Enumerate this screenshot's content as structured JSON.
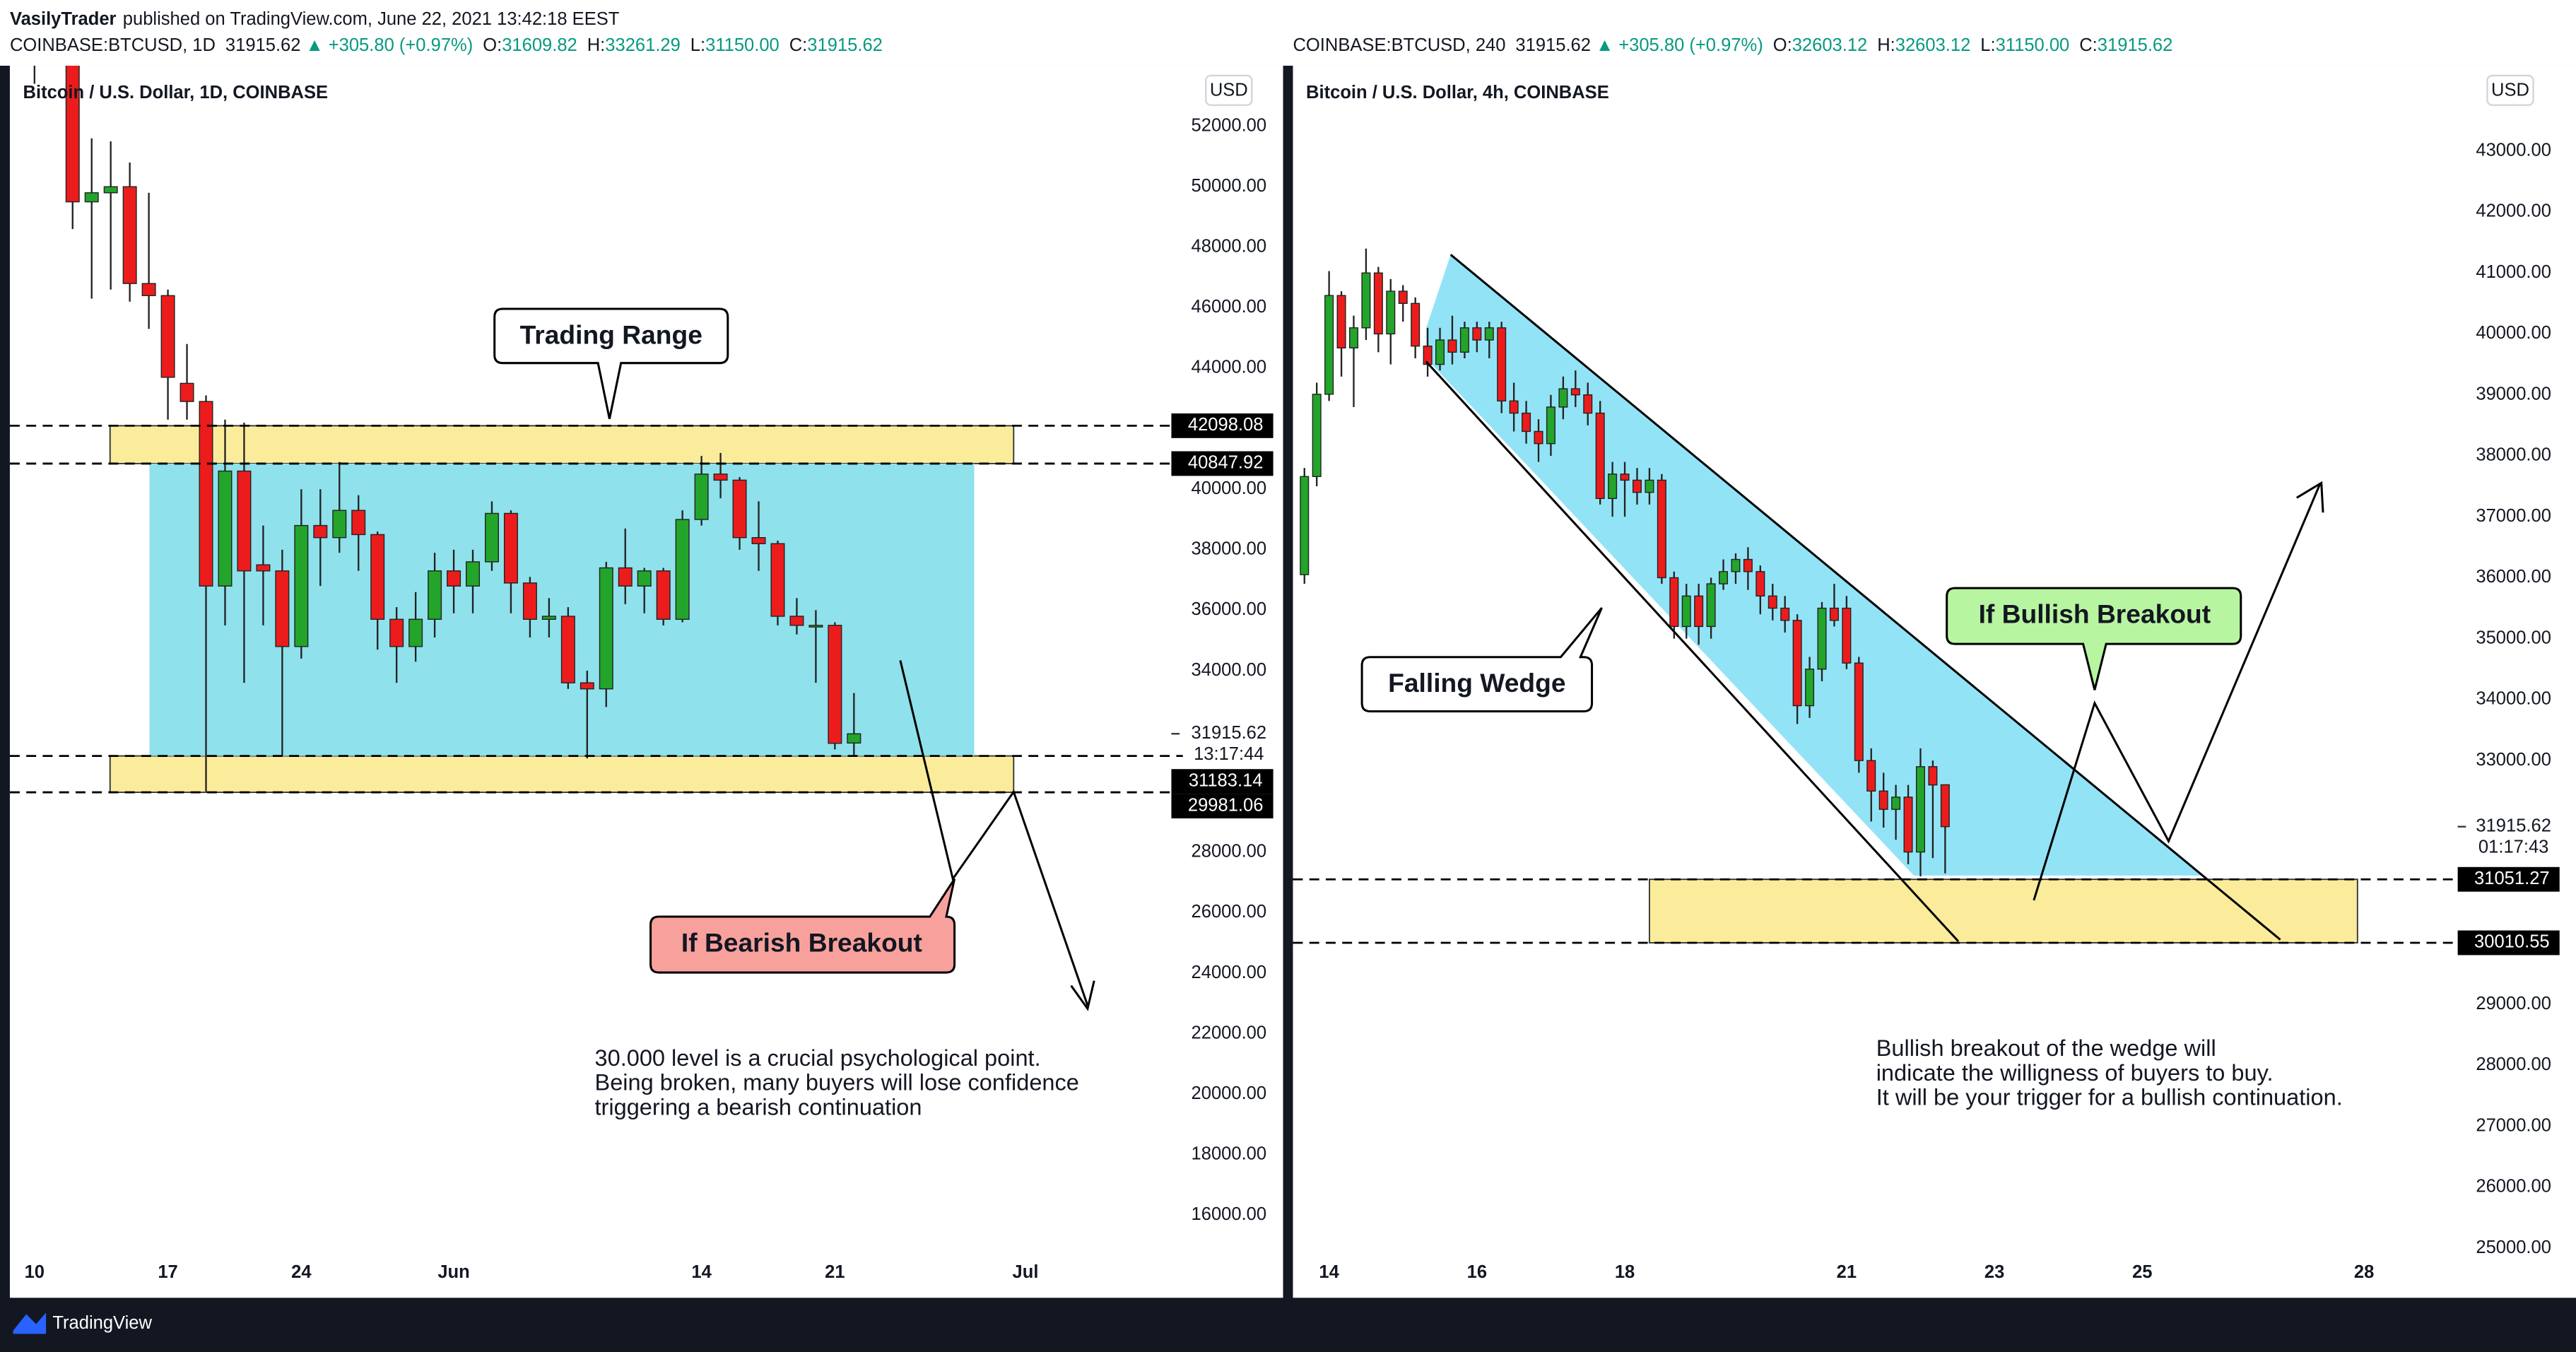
{
  "page": {
    "author": "VasilyTrader",
    "published": "published on TradingView.com, June 22, 2021 13:42:18 EEST",
    "brand": "TradingView"
  },
  "chart_data": [
    {
      "type": "candlestick",
      "title": "Bitcoin / U.S. Dollar, 1D, COINBASE",
      "currency": "USD",
      "header": {
        "symbol": "COINBASE:BTCUSD, 1D",
        "last": "31915.62",
        "arrow": "▲",
        "change": "+305.80 (+0.97%)",
        "ohlc": [
          {
            "label": "O:",
            "value": "31609.82"
          },
          {
            "label": "H:",
            "value": "33261.29"
          },
          {
            "label": "L:",
            "value": "31150.00"
          },
          {
            "label": "C:",
            "value": "31915.62"
          }
        ]
      },
      "categories": [
        "10",
        null,
        null,
        null,
        null,
        null,
        null,
        "17",
        null,
        null,
        null,
        null,
        null,
        null,
        "24",
        null,
        null,
        null,
        null,
        null,
        null,
        null,
        "Jun",
        null,
        null,
        null,
        null,
        null,
        null,
        null,
        null,
        null,
        null,
        null,
        null,
        "14",
        null,
        null,
        null,
        null,
        null,
        null,
        "21",
        null,
        null,
        null,
        null,
        null,
        null,
        null,
        null,
        null,
        "Jul"
      ],
      "series": {
        "open": [
          58000,
          55800,
          56700,
          49500,
          49800,
          50000,
          46800,
          46400,
          43500,
          42900,
          36800,
          40600,
          37500,
          37300,
          34800,
          38800,
          38400,
          39300,
          38500,
          35700,
          34800,
          35700,
          37300,
          36800,
          37600,
          39200,
          36900,
          35700,
          35800,
          33600,
          33400,
          37400,
          36800,
          37300,
          35700,
          39000,
          40500,
          40300,
          38400,
          38200,
          35800,
          35500,
          35500,
          31609.82,
          null,
          null,
          null,
          null,
          null,
          null,
          null,
          null,
          null
        ],
        "high": [
          59500,
          57000,
          57900,
          51600,
          51500,
          50800,
          49800,
          46600,
          44800,
          43100,
          42300,
          42200,
          38800,
          38000,
          40000,
          40000,
          40900,
          39800,
          38600,
          36100,
          36600,
          37900,
          38000,
          38000,
          39600,
          39300,
          37100,
          36400,
          36100,
          34000,
          37600,
          38700,
          37400,
          37400,
          39300,
          41100,
          41200,
          40400,
          39600,
          38300,
          36400,
          36000,
          35600,
          33261.29,
          null,
          null,
          null,
          null,
          null,
          null,
          null,
          null,
          null
        ],
        "low": [
          53400,
          54400,
          48600,
          46300,
          46600,
          46200,
          45300,
          42300,
          42300,
          30000,
          35500,
          33600,
          35500,
          31200,
          34400,
          36800,
          37900,
          37300,
          34700,
          33600,
          34300,
          35100,
          35900,
          35900,
          37300,
          35900,
          35100,
          35100,
          33400,
          31100,
          32800,
          36200,
          35900,
          35500,
          35600,
          38800,
          39700,
          38000,
          37300,
          35500,
          35200,
          33600,
          31400,
          31150,
          null,
          null,
          null,
          null,
          null,
          null,
          null,
          null,
          null
        ],
        "close": [
          55800,
          56700,
          49500,
          49800,
          50000,
          46800,
          46400,
          43700,
          42900,
          36800,
          40600,
          37300,
          37300,
          34800,
          38800,
          38400,
          39300,
          38500,
          35700,
          34800,
          35700,
          37300,
          36800,
          37600,
          39200,
          36900,
          35700,
          35800,
          33600,
          33400,
          37400,
          36800,
          37300,
          35700,
          39000,
          40500,
          40300,
          38400,
          38200,
          35800,
          35500,
          35500,
          31600,
          31915.62,
          null,
          null,
          null,
          null,
          null,
          null,
          null,
          null,
          null
        ]
      },
      "up_color": "#22a52a",
      "down_color": "#ec1c1c",
      "ylim": [
        14900,
        54000
      ],
      "yticks": [
        {
          "value": 52000,
          "label": "52000.00"
        },
        {
          "value": 50000,
          "label": "50000.00"
        },
        {
          "value": 48000,
          "label": "48000.00"
        },
        {
          "value": 46000,
          "label": "46000.00"
        },
        {
          "value": 44000,
          "label": "44000.00"
        },
        {
          "value": 40000,
          "label": "40000.00"
        },
        {
          "value": 38000,
          "label": "38000.00"
        },
        {
          "value": 36000,
          "label": "36000.00"
        },
        {
          "value": 34000,
          "label": "34000.00"
        },
        {
          "value": 28000,
          "label": "28000.00"
        },
        {
          "value": 26000,
          "label": "26000.00"
        },
        {
          "value": 24000,
          "label": "24000.00"
        },
        {
          "value": 22000,
          "label": "22000.00"
        },
        {
          "value": 20000,
          "label": "20000.00"
        },
        {
          "value": 18000,
          "label": "18000.00"
        },
        {
          "value": 16000,
          "label": "16000.00"
        }
      ],
      "levels": [
        42098.08,
        40847.92,
        31183.14,
        29981.06
      ],
      "last": {
        "value": 31915.62,
        "countdown": "13:17:44"
      },
      "zone_color": "#fbec9b",
      "range_color": "#8fe1ec",
      "callouts": [
        "Trading Range",
        "If Bearish Breakout"
      ],
      "note": [
        "30.000 level is a crucial psychological point.",
        "Being broken, many buyers will lose confidence",
        "triggering a bearish continuation"
      ]
    },
    {
      "type": "candlestick",
      "title": "Bitcoin / U.S. Dollar, 4h, COINBASE",
      "currency": "USD",
      "header": {
        "symbol": "COINBASE:BTCUSD, 240",
        "last": "31915.62",
        "arrow": "▲",
        "change": "+305.80 (+0.97%)",
        "ohlc": [
          {
            "label": "O:",
            "value": "32603.12"
          },
          {
            "label": "H:",
            "value": "32603.12"
          },
          {
            "label": "L:",
            "value": "31150.00"
          },
          {
            "label": "C:",
            "value": "31915.62"
          }
        ]
      },
      "categories": [
        null,
        null,
        "14",
        null,
        null,
        null,
        null,
        null,
        null,
        null,
        null,
        null,
        null,
        null,
        "16",
        null,
        null,
        null,
        null,
        null,
        null,
        null,
        null,
        null,
        null,
        null,
        "18",
        null,
        null,
        null,
        null,
        null,
        null,
        null,
        null,
        null,
        null,
        null,
        null,
        null,
        null,
        null,
        null,
        null,
        "21",
        null,
        null,
        null,
        null,
        null,
        null,
        null,
        null,
        null,
        null,
        null,
        "23",
        null,
        null,
        null,
        null,
        null,
        null,
        null,
        null,
        null,
        null,
        null,
        "25",
        null,
        null,
        null,
        null,
        null,
        null,
        null,
        null,
        null,
        null,
        null,
        null,
        null,
        null,
        null,
        null,
        null,
        "28"
      ],
      "series": {
        "open": [
          36050,
          37660,
          39010,
          40630,
          39770,
          40100,
          41000,
          40000,
          40700,
          40500,
          39800,
          39500,
          39900,
          39700,
          40100,
          39900,
          40100,
          38900,
          38700,
          38400,
          38200,
          38800,
          39100,
          39000,
          38700,
          37300,
          37700,
          37600,
          37400,
          37600,
          36000,
          35200,
          35700,
          35200,
          35900,
          36100,
          36300,
          36100,
          35700,
          35500,
          35300,
          33900,
          34500,
          35500,
          35500,
          34600,
          33000,
          32500,
          32200,
          32400,
          31500,
          32900,
          32603.12,
          null,
          null,
          null,
          null,
          null,
          null,
          null,
          null,
          null,
          null,
          null,
          null,
          null,
          null,
          null,
          null,
          null,
          null,
          null,
          null,
          null,
          null,
          null,
          null,
          null,
          null,
          null,
          null,
          null,
          null,
          null,
          null
        ],
        "high": [
          37800,
          39200,
          41030,
          40700,
          40300,
          41400,
          41100,
          40900,
          40800,
          40600,
          40100,
          40100,
          40300,
          40200,
          40200,
          40200,
          40200,
          39200,
          38900,
          38600,
          39000,
          39300,
          39400,
          39200,
          38900,
          37900,
          37900,
          37800,
          37800,
          37700,
          36100,
          35900,
          35900,
          36000,
          36300,
          36400,
          36500,
          36200,
          35900,
          35700,
          35400,
          34700,
          35600,
          35900,
          35700,
          34700,
          33200,
          32800,
          32600,
          32600,
          33200,
          33000,
          32603.12,
          null,
          null,
          null,
          null,
          null,
          null,
          null,
          null,
          null,
          null,
          null,
          null,
          null,
          null,
          null,
          null,
          null,
          null,
          null,
          null,
          null,
          null,
          null,
          null,
          null,
          null,
          null,
          null,
          null,
          null,
          null,
          null
        ],
        "low": [
          35900,
          37500,
          38900,
          39300,
          38800,
          39900,
          39700,
          39500,
          40200,
          39600,
          39300,
          39400,
          39500,
          39600,
          39700,
          39600,
          38700,
          38400,
          38200,
          37900,
          38000,
          38600,
          38800,
          38500,
          37200,
          37000,
          37000,
          37200,
          37200,
          35900,
          35000,
          35000,
          34900,
          35000,
          35800,
          35900,
          35800,
          35400,
          35300,
          35100,
          33600,
          33700,
          34300,
          35200,
          34500,
          32800,
          32000,
          31900,
          31700,
          31300,
          31100,
          31400,
          31150,
          null,
          null,
          null,
          null,
          null,
          null,
          null,
          null,
          null,
          null,
          null,
          null,
          null,
          null,
          null,
          null,
          null,
          null,
          null,
          null,
          null,
          null,
          null,
          null,
          null,
          null,
          null,
          null,
          null,
          null,
          null,
          null
        ],
        "close": [
          37660,
          39010,
          40630,
          39770,
          40100,
          41000,
          40000,
          40700,
          40500,
          39800,
          39500,
          39900,
          39700,
          40100,
          39900,
          40100,
          38900,
          38700,
          38400,
          38200,
          38800,
          39100,
          39000,
          38700,
          37300,
          37700,
          37600,
          37400,
          37600,
          36000,
          35200,
          35700,
          35200,
          35900,
          36100,
          36300,
          36100,
          35700,
          35500,
          35300,
          33900,
          34500,
          35500,
          35300,
          34600,
          33000,
          32500,
          32200,
          32400,
          31500,
          32900,
          32600,
          31915.62,
          null,
          null,
          null,
          null,
          null,
          null,
          null,
          null,
          null,
          null,
          null,
          null,
          null,
          null,
          null,
          null,
          null,
          null,
          null,
          null,
          null,
          null,
          null,
          null,
          null,
          null,
          null,
          null,
          null,
          null,
          null,
          null
        ]
      },
      "up_color": "#22a52a",
      "down_color": "#ec1c1c",
      "ylim": [
        24860,
        44400
      ],
      "yticks": [
        {
          "value": 43000,
          "label": "43000.00"
        },
        {
          "value": 42000,
          "label": "42000.00"
        },
        {
          "value": 41000,
          "label": "41000.00"
        },
        {
          "value": 40000,
          "label": "40000.00"
        },
        {
          "value": 39000,
          "label": "39000.00"
        },
        {
          "value": 38000,
          "label": "38000.00"
        },
        {
          "value": 37000,
          "label": "37000.00"
        },
        {
          "value": 36000,
          "label": "36000.00"
        },
        {
          "value": 35000,
          "label": "35000.00"
        },
        {
          "value": 34000,
          "label": "34000.00"
        },
        {
          "value": 33000,
          "label": "33000.00"
        },
        {
          "value": 29000,
          "label": "29000.00"
        },
        {
          "value": 28000,
          "label": "28000.00"
        },
        {
          "value": 27000,
          "label": "27000.00"
        },
        {
          "value": 26000,
          "label": "26000.00"
        },
        {
          "value": 25000,
          "label": "25000.00"
        }
      ],
      "levels": [
        31051.27,
        30010.55
      ],
      "last": {
        "value": 31915.62,
        "countdown": "01:17:43"
      },
      "zone_color": "#fbec9b",
      "wedge_color": "#93e3f6",
      "callouts": [
        "Falling Wedge",
        "If Bullish Breakout"
      ],
      "note": [
        "Bullish breakout of the wedge will",
        "indicate the willigness of buyers to buy.",
        "It will be your trigger for a bullish continuation."
      ]
    }
  ]
}
